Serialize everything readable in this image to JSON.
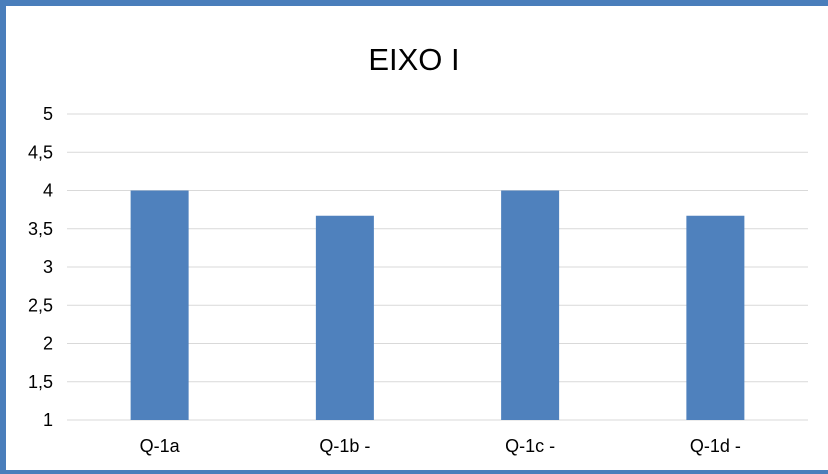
{
  "chart_data": {
    "type": "bar",
    "title": "EIXO I",
    "categories": [
      "Q-1a",
      "Q-1b -",
      "Q-1c -",
      "Q-1d -"
    ],
    "values": [
      4,
      3.67,
      4,
      3.67
    ],
    "ylim": [
      1,
      5
    ],
    "yticks": [
      1,
      1.5,
      2,
      2.5,
      3,
      3.5,
      4,
      4.5,
      5
    ],
    "ytick_labels": [
      "1",
      "1,5",
      "2",
      "2,5",
      "3",
      "3,5",
      "4",
      "4,5",
      "5"
    ],
    "grid": true,
    "legend": "none",
    "bar_color": "#4f81bd",
    "frame_color": "#4a7ebb",
    "gridline_color": "#d9d9d9"
  }
}
